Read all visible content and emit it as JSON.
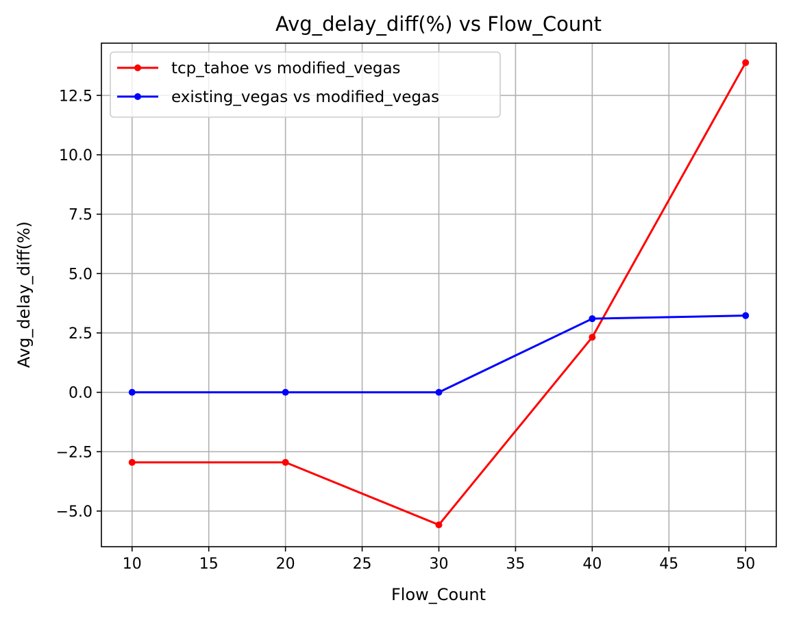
{
  "chart_data": {
    "type": "line",
    "title": "Avg_delay_diff(%) vs Flow_Count",
    "xlabel": "Flow_Count",
    "ylabel": "Avg_delay_diff(%)",
    "x": [
      10,
      20,
      30,
      40,
      50
    ],
    "xlim": [
      8,
      52
    ],
    "ylim": [
      -6.5,
      14.7
    ],
    "xticks": [
      10,
      15,
      20,
      25,
      30,
      35,
      40,
      45,
      50
    ],
    "yticks": [
      -5.0,
      -2.5,
      0.0,
      2.5,
      5.0,
      7.5,
      10.0,
      12.5
    ],
    "xtick_labels": [
      "10",
      "15",
      "20",
      "25",
      "30",
      "35",
      "40",
      "45",
      "50"
    ],
    "ytick_labels": [
      "−5.0",
      "−2.5",
      "0.0",
      "2.5",
      "5.0",
      "7.5",
      "10.0",
      "12.5"
    ],
    "grid": true,
    "legend_position": "top-left",
    "series": [
      {
        "name": "tcp_tahoe vs modified_vegas",
        "color": "#ff0000",
        "marker": "circle",
        "values": [
          -2.95,
          -2.95,
          -5.58,
          2.32,
          13.88
        ]
      },
      {
        "name": "existing_vegas vs modified_vegas",
        "color": "#0000ff",
        "marker": "circle",
        "values": [
          0.0,
          0.0,
          0.0,
          3.1,
          3.23
        ]
      }
    ]
  }
}
